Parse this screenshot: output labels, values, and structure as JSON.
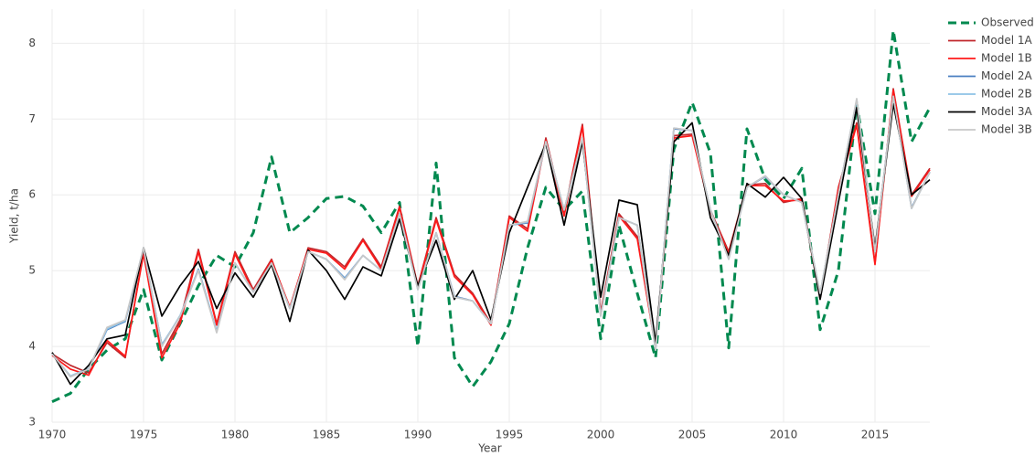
{
  "chart_data": {
    "type": "line",
    "x_label": "Year",
    "y_label": "Yield, t/ha",
    "x": [
      1970,
      1971,
      1972,
      1973,
      1974,
      1975,
      1976,
      1977,
      1978,
      1979,
      1980,
      1981,
      1982,
      1983,
      1984,
      1985,
      1986,
      1987,
      1988,
      1989,
      1990,
      1991,
      1992,
      1993,
      1994,
      1995,
      1996,
      1997,
      1998,
      1999,
      2000,
      2001,
      2002,
      2003,
      2004,
      2005,
      2006,
      2007,
      2008,
      2009,
      2010,
      2011,
      2012,
      2013,
      2014,
      2015,
      2016,
      2017,
      2018
    ],
    "xlim": [
      1970,
      2018
    ],
    "xticks": [
      1970,
      1975,
      1980,
      1985,
      1990,
      1995,
      2000,
      2005,
      2010,
      2015
    ],
    "ylim": [
      3,
      8.45
    ],
    "yticks": [
      3,
      4,
      5,
      6,
      7,
      8
    ],
    "grid": true,
    "legend": "right",
    "series": [
      {
        "name": "Observed",
        "color": "#00894f",
        "dash": "dash",
        "values": [
          3.27,
          3.38,
          3.7,
          3.95,
          4.1,
          4.75,
          3.82,
          4.3,
          4.8,
          5.2,
          5.05,
          5.5,
          6.5,
          5.5,
          5.7,
          5.95,
          5.98,
          5.85,
          5.5,
          5.9,
          4.0,
          6.42,
          3.85,
          3.47,
          3.8,
          4.3,
          5.3,
          6.1,
          5.8,
          6.05,
          4.1,
          5.6,
          4.7,
          3.85,
          6.6,
          7.22,
          6.55,
          3.98,
          6.87,
          6.2,
          5.95,
          6.35,
          4.22,
          5.0,
          7.2,
          5.75,
          8.17,
          6.7,
          7.15
        ]
      },
      {
        "name": "Model 1A",
        "color": "#c0282d",
        "dash": "solid",
        "values": [
          3.9,
          3.75,
          3.65,
          4.05,
          3.85,
          5.25,
          3.9,
          4.35,
          5.28,
          4.3,
          5.25,
          4.75,
          5.15,
          4.5,
          5.3,
          5.25,
          5.05,
          5.42,
          5.05,
          5.85,
          4.8,
          5.7,
          4.95,
          4.7,
          4.3,
          5.72,
          5.55,
          6.75,
          5.75,
          6.93,
          4.45,
          5.75,
          5.45,
          4.0,
          6.78,
          6.8,
          5.8,
          5.25,
          6.13,
          6.15,
          5.9,
          5.95,
          4.65,
          6.1,
          6.95,
          5.1,
          7.4,
          6.0,
          6.35
        ]
      },
      {
        "name": "Model 1B",
        "color": "#ff1a1a",
        "dash": "solid",
        "values": [
          3.88,
          3.7,
          3.62,
          4.08,
          3.87,
          5.22,
          3.85,
          4.3,
          5.25,
          4.28,
          5.22,
          4.72,
          5.13,
          4.52,
          5.28,
          5.23,
          5.02,
          5.4,
          5.02,
          5.83,
          4.78,
          5.67,
          4.92,
          4.68,
          4.28,
          5.7,
          5.52,
          6.72,
          5.72,
          6.9,
          4.42,
          5.72,
          5.42,
          3.98,
          6.75,
          6.78,
          5.78,
          5.22,
          6.12,
          6.12,
          5.92,
          5.93,
          4.63,
          6.08,
          6.92,
          5.08,
          7.38,
          5.98,
          6.33
        ]
      },
      {
        "name": "Model 2A",
        "color": "#4a7fc1",
        "dash": "solid",
        "values": [
          3.9,
          3.6,
          3.7,
          4.22,
          4.33,
          5.29,
          4.02,
          4.4,
          5.02,
          4.2,
          5.1,
          4.72,
          5.1,
          4.5,
          5.25,
          5.15,
          4.9,
          5.2,
          5.0,
          5.75,
          4.76,
          5.5,
          4.66,
          4.6,
          4.3,
          5.6,
          5.63,
          6.7,
          5.8,
          6.74,
          4.41,
          5.7,
          5.6,
          3.96,
          6.87,
          6.85,
          5.8,
          5.16,
          6.1,
          6.24,
          6.0,
          5.9,
          4.69,
          6.0,
          7.25,
          5.25,
          7.3,
          5.83,
          6.3
        ]
      },
      {
        "name": "Model 2B",
        "color": "#8ec3e6",
        "dash": "solid",
        "values": [
          3.9,
          3.61,
          3.71,
          4.23,
          4.34,
          5.3,
          4.01,
          4.41,
          5.01,
          4.19,
          5.1,
          4.72,
          5.1,
          4.5,
          5.25,
          5.15,
          4.89,
          5.2,
          5.0,
          5.75,
          4.75,
          5.5,
          4.65,
          4.6,
          4.3,
          5.6,
          5.64,
          6.7,
          5.8,
          6.75,
          4.4,
          5.7,
          5.6,
          3.95,
          6.88,
          6.85,
          5.8,
          5.15,
          6.1,
          6.25,
          6.0,
          5.9,
          4.7,
          6.0,
          7.26,
          5.25,
          7.3,
          5.82,
          6.3
        ]
      },
      {
        "name": "Model 3A",
        "color": "#000000",
        "dash": "solid",
        "values": [
          3.92,
          3.5,
          3.75,
          4.1,
          4.15,
          5.3,
          4.4,
          4.8,
          5.12,
          4.5,
          4.97,
          4.65,
          5.08,
          4.33,
          5.27,
          5.0,
          4.62,
          5.05,
          4.93,
          5.68,
          4.8,
          5.4,
          4.62,
          5.0,
          4.35,
          5.5,
          6.1,
          6.68,
          5.6,
          6.7,
          4.65,
          5.93,
          5.87,
          4.05,
          6.7,
          6.95,
          5.7,
          5.2,
          6.15,
          5.97,
          6.23,
          5.95,
          4.62,
          5.9,
          7.15,
          5.3,
          7.2,
          6.0,
          6.2
        ]
      },
      {
        "name": "Model 3B",
        "color": "#c8c8c8",
        "dash": "solid",
        "values": [
          3.9,
          3.6,
          3.7,
          4.25,
          4.35,
          5.3,
          4.0,
          4.4,
          5.0,
          4.18,
          5.1,
          4.72,
          5.1,
          4.5,
          5.25,
          5.15,
          4.88,
          5.2,
          5.0,
          5.75,
          4.75,
          5.5,
          4.65,
          4.6,
          4.3,
          5.6,
          5.65,
          6.7,
          5.8,
          6.75,
          4.4,
          5.7,
          5.6,
          3.95,
          6.88,
          6.85,
          5.8,
          5.15,
          6.1,
          6.25,
          6.0,
          5.9,
          4.7,
          6.0,
          7.27,
          5.25,
          7.3,
          5.82,
          6.3
        ]
      }
    ]
  }
}
